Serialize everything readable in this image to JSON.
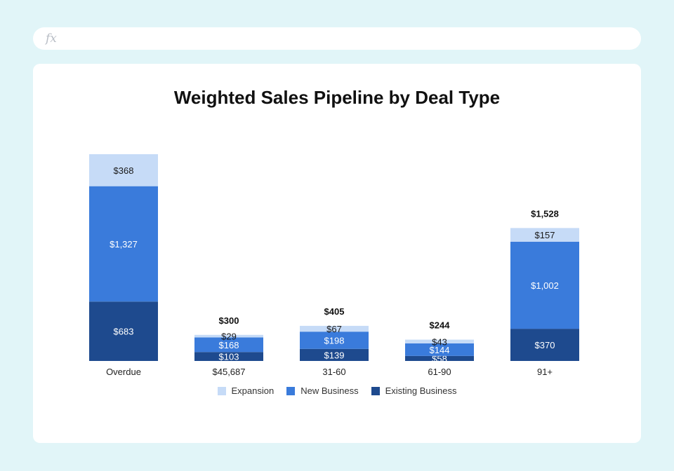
{
  "formula_bar": {
    "icon": "fx-icon",
    "text": "fx"
  },
  "chart_data": {
    "type": "bar",
    "stacked": true,
    "title": "Weighted Sales Pipeline by Deal Type",
    "xlabel": "",
    "ylabel": "",
    "categories": [
      "Overdue",
      "$45,687",
      "31-60",
      "61-90",
      "91+"
    ],
    "series": [
      {
        "name": "Existing Business",
        "color": "#1e4a8e",
        "values": [
          683,
          103,
          139,
          58,
          370
        ],
        "labels": [
          "$683",
          "$103",
          "$139",
          "$58",
          "$370"
        ]
      },
      {
        "name": "New Business",
        "color": "#3a7bdb",
        "values": [
          1327,
          168,
          198,
          144,
          1002
        ],
        "labels": [
          "$1,327",
          "$168",
          "$198",
          "$144",
          "$1,002"
        ]
      },
      {
        "name": "Expansion",
        "color": "#c6dbf7",
        "values": [
          368,
          29,
          67,
          43,
          157
        ],
        "labels": [
          "$368",
          "$29",
          "$67",
          "$43",
          "$157"
        ]
      }
    ],
    "totals": [
      "",
      "$300",
      "$405",
      "$244",
      "$1,528"
    ],
    "legend": [
      "Expansion",
      "New Business",
      "Existing Business"
    ],
    "legend_position": "bottom",
    "grid": false,
    "ylim": [
      0,
      2378
    ]
  }
}
